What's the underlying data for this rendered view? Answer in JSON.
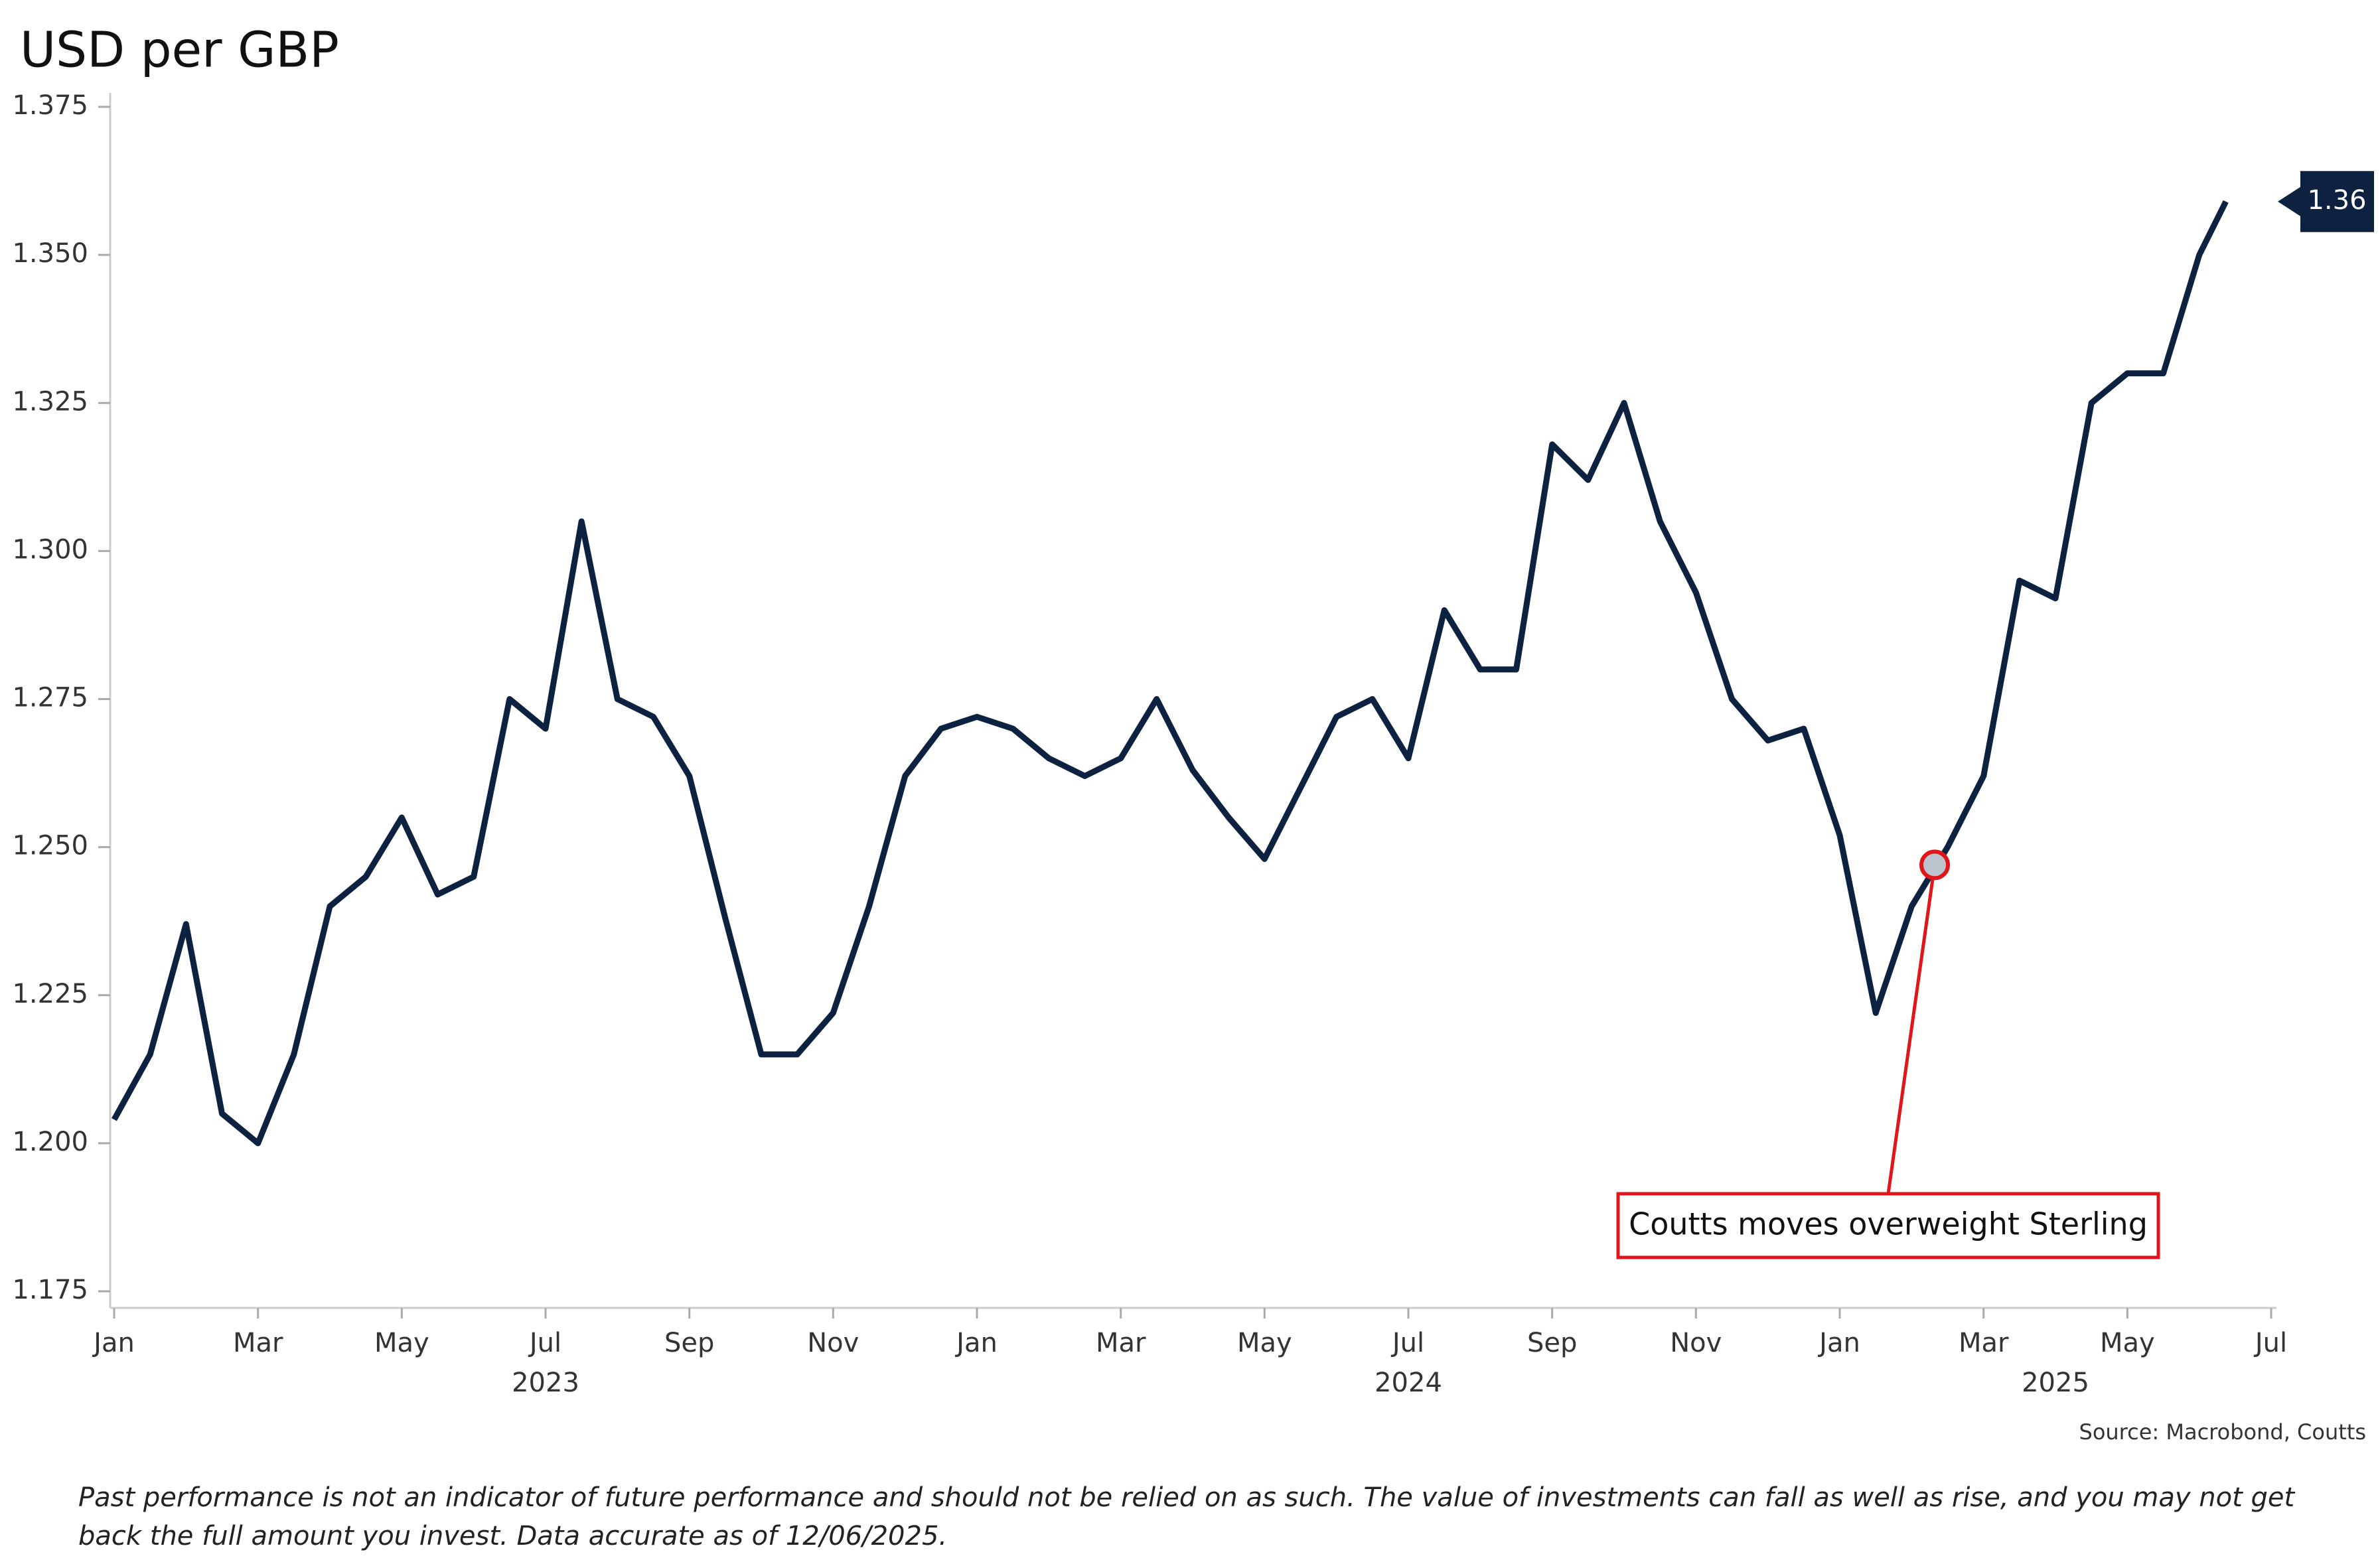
{
  "chart_data": {
    "type": "line",
    "title": "USD per GBP",
    "x": [
      2023,
      2023.0417,
      2023.0833,
      2023.125,
      2023.1667,
      2023.2083,
      2023.25,
      2023.2917,
      2023.3333,
      2023.375,
      2023.4167,
      2023.4583,
      2023.5,
      2023.5417,
      2023.5833,
      2023.625,
      2023.6667,
      2023.7083,
      2023.75,
      2023.7917,
      2023.8333,
      2023.875,
      2023.9167,
      2023.9583,
      2024,
      2024.0417,
      2024.0833,
      2024.125,
      2024.1667,
      2024.2083,
      2024.25,
      2024.2917,
      2024.3333,
      2024.375,
      2024.4167,
      2024.4583,
      2024.5,
      2024.5417,
      2024.5833,
      2024.625,
      2024.6667,
      2024.7083,
      2024.75,
      2024.7917,
      2024.8333,
      2024.875,
      2024.9167,
      2024.9583,
      2025,
      2025.0417,
      2025.0833,
      2025.125,
      2025.1667,
      2025.2083,
      2025.25,
      2025.2917,
      2025.3333,
      2025.375,
      2025.4167,
      2025.4475
    ],
    "series": [
      {
        "name": "USD per GBP",
        "color": "#0d2240",
        "values": [
          1.204,
          1.215,
          1.237,
          1.205,
          1.2,
          1.215,
          1.24,
          1.245,
          1.255,
          1.242,
          1.245,
          1.275,
          1.27,
          1.305,
          1.275,
          1.272,
          1.262,
          1.238,
          1.215,
          1.215,
          1.222,
          1.24,
          1.262,
          1.27,
          1.272,
          1.27,
          1.265,
          1.262,
          1.265,
          1.275,
          1.263,
          1.255,
          1.248,
          1.26,
          1.272,
          1.275,
          1.265,
          1.29,
          1.28,
          1.28,
          1.318,
          1.312,
          1.325,
          1.305,
          1.293,
          1.275,
          1.268,
          1.27,
          1.252,
          1.222,
          1.24,
          1.25,
          1.262,
          1.295,
          1.292,
          1.325,
          1.33,
          1.33,
          1.35,
          1.359
        ]
      }
    ],
    "end_label": "1.36",
    "xlim": [
      2023,
      2025.5
    ],
    "xticks": [
      {
        "value": 2023,
        "label": "Jan"
      },
      {
        "value": 2023.1667,
        "label": "Mar"
      },
      {
        "value": 2023.3333,
        "label": "May"
      },
      {
        "value": 2023.5,
        "label": "Jul"
      },
      {
        "value": 2023.6667,
        "label": "Sep"
      },
      {
        "value": 2023.8333,
        "label": "Nov"
      },
      {
        "value": 2024,
        "label": "Jan"
      },
      {
        "value": 2024.1667,
        "label": "Mar"
      },
      {
        "value": 2024.3333,
        "label": "May"
      },
      {
        "value": 2024.5,
        "label": "Jul"
      },
      {
        "value": 2024.6667,
        "label": "Sep"
      },
      {
        "value": 2024.8333,
        "label": "Nov"
      },
      {
        "value": 2025,
        "label": "Jan"
      },
      {
        "value": 2025.1667,
        "label": "Mar"
      },
      {
        "value": 2025.3333,
        "label": "May"
      },
      {
        "value": 2025.5,
        "label": "Jul"
      }
    ],
    "year_labels": [
      {
        "value": 2023.5,
        "label": "2023"
      },
      {
        "value": 2024.5,
        "label": "2024"
      },
      {
        "value": 2025.25,
        "label": "2025"
      }
    ],
    "ylim": [
      1.175,
      1.375
    ],
    "yticks": [
      {
        "value": 1.175,
        "label": "1.175"
      },
      {
        "value": 1.2,
        "label": "1.200"
      },
      {
        "value": 1.225,
        "label": "1.225"
      },
      {
        "value": 1.25,
        "label": "1.250"
      },
      {
        "value": 1.275,
        "label": "1.275"
      },
      {
        "value": 1.3,
        "label": "1.300"
      },
      {
        "value": 1.325,
        "label": "1.325"
      },
      {
        "value": 1.35,
        "label": "1.350"
      },
      {
        "value": 1.375,
        "label": "1.375"
      }
    ],
    "grid": false,
    "annotation": {
      "text": "Coutts moves overweight Sterling",
      "x": 2025.11,
      "y": 1.247
    },
    "source": "Source: Macrobond, Coutts",
    "footnote": "Past performance is not an indicator of future performance and should not be relied on as such. The value of investments can fall as well as rise, and you may not get back the full amount you invest. Data accurate as of 12/06/2025."
  }
}
